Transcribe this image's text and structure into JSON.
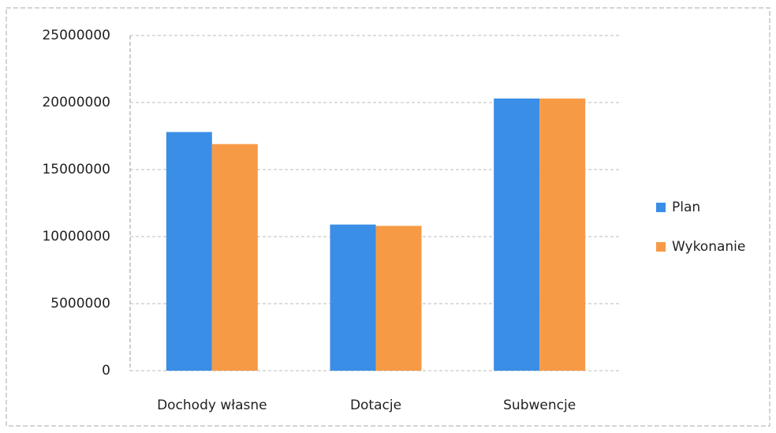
{
  "chart_data": {
    "type": "bar",
    "categories": [
      "Dochody własne",
      "Dotacje",
      "Subwencje"
    ],
    "series": [
      {
        "name": "Plan",
        "color": "#3a8ee6",
        "values": [
          17800000,
          10900000,
          20300000
        ]
      },
      {
        "name": "Wykonanie",
        "color": "#f79a46",
        "values": [
          16900000,
          10800000,
          20300000
        ]
      }
    ],
    "ylim": [
      0,
      25000000
    ],
    "yticks": [
      0,
      5000000,
      10000000,
      15000000,
      20000000,
      25000000
    ],
    "grid": true,
    "legend": "right"
  }
}
